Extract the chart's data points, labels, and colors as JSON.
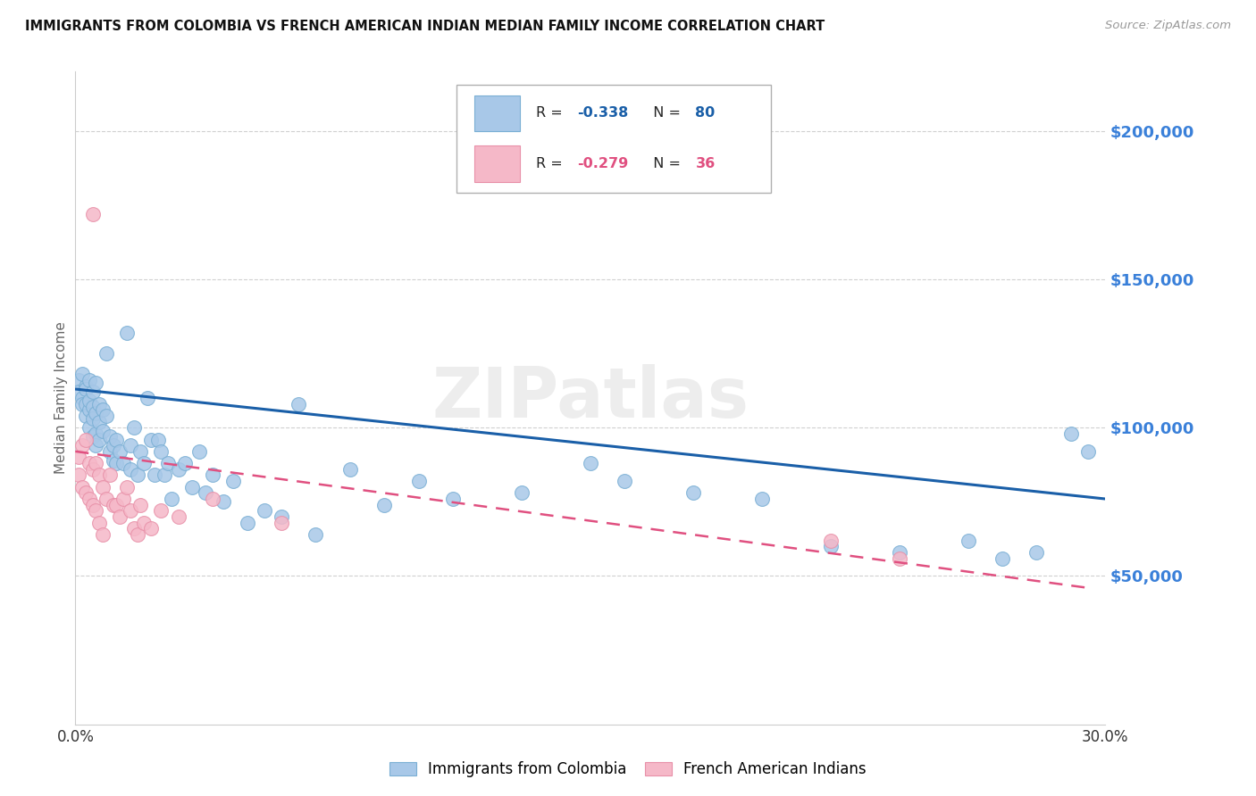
{
  "title": "IMMIGRANTS FROM COLOMBIA VS FRENCH AMERICAN INDIAN MEDIAN FAMILY INCOME CORRELATION CHART",
  "source": "Source: ZipAtlas.com",
  "ylabel": "Median Family Income",
  "xlim": [
    0,
    0.3
  ],
  "ylim": [
    0,
    220000
  ],
  "yticks": [
    50000,
    100000,
    150000,
    200000
  ],
  "ytick_labels": [
    "$50,000",
    "$100,000",
    "$150,000",
    "$200,000"
  ],
  "xticks": [
    0.0,
    0.05,
    0.1,
    0.15,
    0.2,
    0.25,
    0.3
  ],
  "blue_color": "#a8c8e8",
  "blue_edge_color": "#7aafd4",
  "blue_line_color": "#1a5fa8",
  "pink_color": "#f5b8c8",
  "pink_edge_color": "#e890a8",
  "pink_line_color": "#e05080",
  "R_blue": -0.338,
  "N_blue": 80,
  "R_pink": -0.279,
  "N_pink": 36,
  "legend_label_blue": "Immigrants from Colombia",
  "legend_label_pink": "French American Indians",
  "watermark": "ZIPatlas",
  "blue_scatter_x": [
    0.001,
    0.001,
    0.002,
    0.002,
    0.002,
    0.003,
    0.003,
    0.003,
    0.003,
    0.004,
    0.004,
    0.004,
    0.004,
    0.005,
    0.005,
    0.005,
    0.005,
    0.006,
    0.006,
    0.006,
    0.006,
    0.007,
    0.007,
    0.007,
    0.008,
    0.008,
    0.009,
    0.009,
    0.01,
    0.01,
    0.011,
    0.011,
    0.012,
    0.012,
    0.013,
    0.014,
    0.015,
    0.016,
    0.016,
    0.017,
    0.018,
    0.019,
    0.02,
    0.021,
    0.022,
    0.023,
    0.024,
    0.025,
    0.026,
    0.027,
    0.028,
    0.03,
    0.032,
    0.034,
    0.036,
    0.038,
    0.04,
    0.043,
    0.046,
    0.05,
    0.055,
    0.06,
    0.065,
    0.07,
    0.08,
    0.09,
    0.1,
    0.11,
    0.13,
    0.15,
    0.16,
    0.18,
    0.2,
    0.22,
    0.24,
    0.26,
    0.27,
    0.28,
    0.29,
    0.295
  ],
  "blue_scatter_y": [
    116000,
    112000,
    118000,
    110000,
    108000,
    114000,
    108000,
    104000,
    113000,
    116000,
    106000,
    109000,
    100000,
    107000,
    112000,
    97000,
    103000,
    105000,
    98000,
    115000,
    94000,
    102000,
    108000,
    96000,
    99000,
    106000,
    125000,
    104000,
    92000,
    97000,
    89000,
    94000,
    96000,
    88000,
    92000,
    88000,
    132000,
    94000,
    86000,
    100000,
    84000,
    92000,
    88000,
    110000,
    96000,
    84000,
    96000,
    92000,
    84000,
    88000,
    76000,
    86000,
    88000,
    80000,
    92000,
    78000,
    84000,
    75000,
    82000,
    68000,
    72000,
    70000,
    108000,
    64000,
    86000,
    74000,
    82000,
    76000,
    78000,
    88000,
    82000,
    78000,
    76000,
    60000,
    58000,
    62000,
    56000,
    58000,
    98000,
    92000
  ],
  "pink_scatter_x": [
    0.001,
    0.001,
    0.002,
    0.002,
    0.003,
    0.003,
    0.004,
    0.004,
    0.005,
    0.005,
    0.006,
    0.006,
    0.007,
    0.007,
    0.008,
    0.008,
    0.009,
    0.01,
    0.011,
    0.012,
    0.013,
    0.014,
    0.015,
    0.016,
    0.017,
    0.018,
    0.019,
    0.02,
    0.022,
    0.025,
    0.03,
    0.04,
    0.06,
    0.22,
    0.24,
    0.005
  ],
  "pink_scatter_y": [
    90000,
    84000,
    94000,
    80000,
    96000,
    78000,
    88000,
    76000,
    86000,
    74000,
    88000,
    72000,
    84000,
    68000,
    80000,
    64000,
    76000,
    84000,
    74000,
    74000,
    70000,
    76000,
    80000,
    72000,
    66000,
    64000,
    74000,
    68000,
    66000,
    72000,
    70000,
    76000,
    68000,
    62000,
    56000,
    172000
  ],
  "blue_trend_x": [
    0.0,
    0.3
  ],
  "blue_trend_y": [
    113000,
    76000
  ],
  "pink_trend_x": [
    0.0,
    0.295
  ],
  "pink_trend_y": [
    92000,
    46000
  ],
  "background_color": "#ffffff",
  "grid_color": "#d0d0d0",
  "title_color": "#111111",
  "ylabel_color": "#666666",
  "ytick_color": "#3a80d9",
  "source_color": "#999999"
}
